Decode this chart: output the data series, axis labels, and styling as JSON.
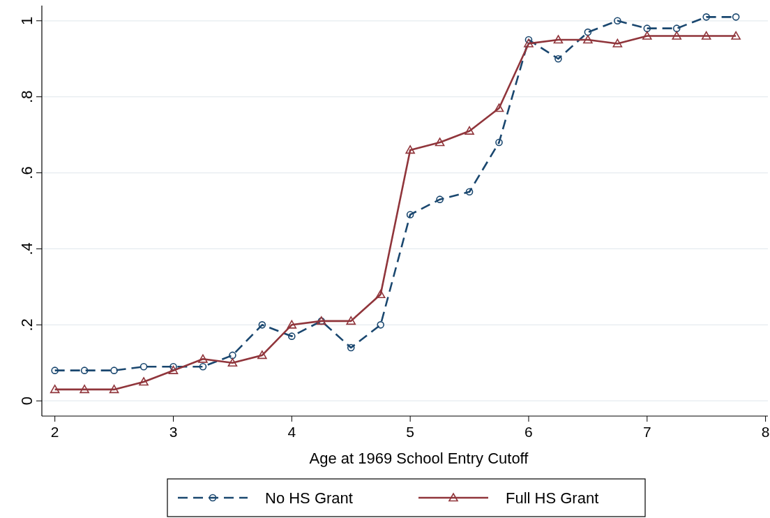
{
  "chart_data": {
    "type": "line",
    "xlabel": "Age at 1969 School Entry Cutoff",
    "x": [
      2,
      2.25,
      2.5,
      2.75,
      3,
      3.25,
      3.5,
      3.75,
      4,
      4.25,
      4.5,
      4.75,
      5,
      5.25,
      5.5,
      5.75,
      6,
      6.25,
      6.5,
      6.75,
      7,
      7.25,
      7.5,
      7.75
    ],
    "series": [
      {
        "name": "No HS Grant",
        "color": "#1a476f",
        "marker": "circle",
        "line_style": "dashed",
        "values": [
          0.08,
          0.08,
          0.08,
          0.09,
          0.09,
          0.09,
          0.12,
          0.2,
          0.17,
          0.21,
          0.14,
          0.2,
          0.49,
          0.53,
          0.55,
          0.68,
          0.95,
          0.9,
          0.97,
          1.0,
          0.98,
          0.98,
          1.01,
          1.01
        ]
      },
      {
        "name": "Full HS Grant",
        "color": "#90353b",
        "marker": "triangle",
        "line_style": "solid",
        "values": [
          0.03,
          0.03,
          0.03,
          0.05,
          0.08,
          0.11,
          0.1,
          0.12,
          0.2,
          0.21,
          0.21,
          0.28,
          0.66,
          0.68,
          0.71,
          0.77,
          0.94,
          0.95,
          0.95,
          0.94,
          0.96,
          0.96,
          0.96,
          0.96
        ]
      }
    ],
    "xlim": [
      1.89,
      8.02
    ],
    "xticks": [
      2,
      3,
      4,
      5,
      6,
      7,
      8
    ],
    "ylim": [
      -0.04,
      1.04
    ],
    "yticks": [
      0,
      {
        "value": 0.2,
        "label": ".2"
      },
      {
        "value": 0.4,
        "label": ".4"
      },
      {
        "value": 0.6,
        "label": ".6"
      },
      {
        "value": 0.8,
        "label": ".8"
      },
      1
    ],
    "grid": "y",
    "legend": "bottom"
  }
}
